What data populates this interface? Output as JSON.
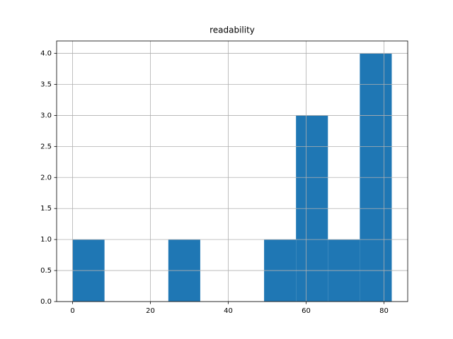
{
  "chart_data": {
    "type": "histogram",
    "title": "readability",
    "bins": [
      0,
      8.2,
      16.4,
      24.6,
      32.8,
      41,
      49.2,
      57.4,
      65.6,
      73.8,
      82
    ],
    "values": [
      1,
      0,
      0,
      1,
      0,
      0,
      1,
      3,
      1,
      4
    ],
    "color": "#1f77b4",
    "xlim": [
      -4.1,
      86.1
    ],
    "xticks": [
      0,
      20,
      40,
      60,
      80
    ],
    "ylim": [
      0,
      4.2
    ],
    "yticks": [
      {
        "value": 0,
        "label": "0.0"
      },
      0.5,
      {
        "value": 1,
        "label": "1.0"
      },
      1.5,
      {
        "value": 2,
        "label": "2.0"
      },
      2.5,
      {
        "value": 3,
        "label": "3.0"
      },
      3.5,
      {
        "value": 4,
        "label": "4.0"
      }
    ],
    "grid": true
  }
}
